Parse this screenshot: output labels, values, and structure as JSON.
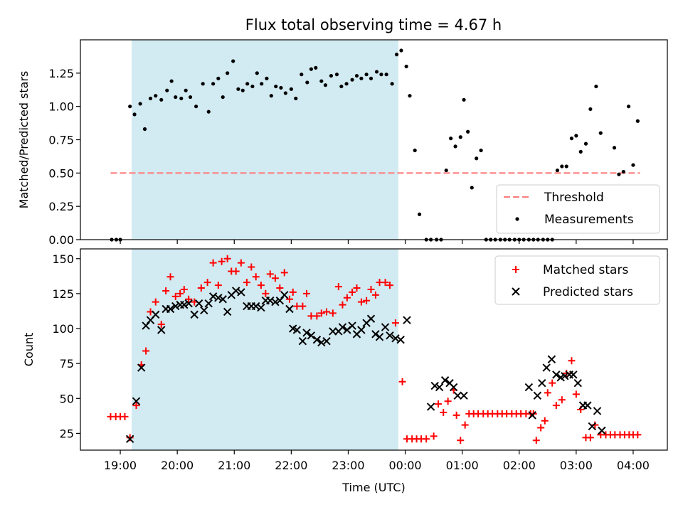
{
  "title": "Flux total observing time = 4.67 h",
  "colors": {
    "shade": "#add8e6",
    "threshold": "#ff8080",
    "measurements": "#000000",
    "matched": "#ff0000",
    "predicted": "#000000"
  },
  "chart_data": [
    {
      "type": "scatter",
      "panel": "top",
      "ylabel": "Matched/Predicted stars",
      "xlabel": "",
      "x_unit": "hours since 00:00 UTC of first night (24 = 00:00 next day)",
      "xlim": [
        18.3,
        28.6
      ],
      "ylim": [
        0,
        1.5
      ],
      "yticks": [
        "0.00",
        "0.25",
        "0.50",
        "0.75",
        "1.00",
        "1.25"
      ],
      "grid": false,
      "legend_position": "bottom-right",
      "shaded_interval": [
        19.2,
        23.88
      ],
      "threshold": {
        "name": "Threshold",
        "value": 0.5,
        "x_range": [
          18.83,
          28.12
        ],
        "style": "dashed"
      },
      "series": [
        {
          "name": "Measurements",
          "marker": "dot",
          "x": [
            18.85,
            18.93,
            19.0,
            19.17,
            19.25,
            19.35,
            19.43,
            19.53,
            19.62,
            19.72,
            19.82,
            19.9,
            19.97,
            20.07,
            20.15,
            20.23,
            20.33,
            20.45,
            20.55,
            20.63,
            20.72,
            20.8,
            20.88,
            20.98,
            21.07,
            21.15,
            21.23,
            21.32,
            21.4,
            21.48,
            21.57,
            21.65,
            21.73,
            21.82,
            21.9,
            22.0,
            22.08,
            22.18,
            22.28,
            22.35,
            22.43,
            22.53,
            22.6,
            22.7,
            22.8,
            22.88,
            22.97,
            23.07,
            23.15,
            23.23,
            23.32,
            23.4,
            23.5,
            23.58,
            23.67,
            23.77,
            23.85,
            23.93,
            24.02,
            24.08,
            24.17,
            24.25,
            24.37,
            24.45,
            24.55,
            24.63,
            24.72,
            24.8,
            24.88,
            24.97,
            25.03,
            25.1,
            25.17,
            25.25,
            25.33,
            25.42,
            25.5,
            25.58,
            25.67,
            25.75,
            25.83,
            25.92,
            26.0,
            26.08,
            26.17,
            26.25,
            26.33,
            26.42,
            26.5,
            26.58,
            26.67,
            26.75,
            26.83,
            26.92,
            27.0,
            27.08,
            27.17,
            27.25,
            27.35,
            27.43,
            27.67,
            27.75,
            27.83,
            27.92,
            28.0,
            28.08
          ],
          "y": [
            0,
            0,
            0,
            1.0,
            0.94,
            1.02,
            0.83,
            1.06,
            1.08,
            1.05,
            1.12,
            1.19,
            1.07,
            1.06,
            1.12,
            1.07,
            1.0,
            1.17,
            0.96,
            1.17,
            1.21,
            1.07,
            1.25,
            1.34,
            1.13,
            1.12,
            1.17,
            1.15,
            1.25,
            1.17,
            1.21,
            1.08,
            1.15,
            1.14,
            1.1,
            1.13,
            1.06,
            1.24,
            1.18,
            1.28,
            1.29,
            1.19,
            1.16,
            1.23,
            1.24,
            1.15,
            1.17,
            1.2,
            1.23,
            1.21,
            1.24,
            1.21,
            1.26,
            1.24,
            1.24,
            1.17,
            1.39,
            1.42,
            1.3,
            1.08,
            0.67,
            0.19,
            0,
            0,
            0,
            0,
            0.52,
            0.76,
            0.7,
            0.77,
            1.05,
            0.81,
            0.39,
            0.61,
            0.67,
            0,
            0,
            0,
            0,
            0,
            0,
            0,
            0,
            0,
            0,
            0,
            0,
            0,
            0,
            0,
            0.52,
            0.55,
            0.55,
            0.76,
            0.78,
            0.66,
            0.72,
            0.98,
            1.15,
            0.8,
            0.69,
            0.49,
            0.51,
            1.0,
            0.56,
            0.89
          ]
        }
      ]
    },
    {
      "type": "scatter",
      "panel": "bottom",
      "ylabel": "Count",
      "xlabel": "Time (UTC)",
      "x_unit": "hours since 00:00 UTC of first night (24 = 00:00 next day)",
      "xlim": [
        18.3,
        28.6
      ],
      "ylim": [
        13,
        157
      ],
      "yticks": [
        "25",
        "50",
        "75",
        "100",
        "125",
        "150"
      ],
      "xticks": [
        {
          "x": 19,
          "label": "19:00"
        },
        {
          "x": 20,
          "label": "20:00"
        },
        {
          "x": 21,
          "label": "21:00"
        },
        {
          "x": 22,
          "label": "22:00"
        },
        {
          "x": 23,
          "label": "23:00"
        },
        {
          "x": 24,
          "label": "00:00"
        },
        {
          "x": 25,
          "label": "01:00"
        },
        {
          "x": 26,
          "label": "02:00"
        },
        {
          "x": 27,
          "label": "03:00"
        },
        {
          "x": 28,
          "label": "04:00"
        }
      ],
      "grid": false,
      "legend_position": "top-right",
      "shaded_interval": [
        19.2,
        23.88
      ],
      "series": [
        {
          "name": "Matched stars",
          "marker": "plus",
          "x": [
            18.83,
            18.92,
            19.0,
            19.08,
            19.17,
            19.28,
            19.37,
            19.45,
            19.53,
            19.62,
            19.72,
            19.8,
            19.88,
            19.97,
            20.05,
            20.12,
            20.2,
            20.3,
            20.42,
            20.53,
            20.63,
            20.72,
            20.78,
            20.88,
            20.95,
            21.03,
            21.12,
            21.22,
            21.3,
            21.38,
            21.47,
            21.55,
            21.63,
            21.72,
            21.8,
            21.88,
            21.97,
            22.03,
            22.1,
            22.2,
            22.27,
            22.35,
            22.45,
            22.53,
            22.62,
            22.73,
            22.83,
            22.9,
            22.98,
            23.07,
            23.15,
            23.23,
            23.32,
            23.4,
            23.48,
            23.55,
            23.65,
            23.73,
            23.83,
            23.95,
            24.03,
            24.12,
            24.2,
            24.28,
            24.37,
            24.5,
            24.58,
            24.67,
            24.75,
            24.85,
            24.9,
            24.97,
            25.05,
            25.12,
            25.2,
            25.28,
            25.37,
            25.45,
            25.53,
            25.62,
            25.7,
            25.78,
            25.87,
            25.95,
            26.03,
            26.12,
            26.2,
            26.25,
            26.3,
            26.38,
            26.45,
            26.5,
            26.58,
            26.65,
            26.75,
            26.83,
            26.92,
            27.0,
            27.08,
            27.17,
            27.25,
            27.33,
            27.43,
            27.52,
            27.6,
            27.68,
            27.77,
            27.85,
            27.93,
            28.0,
            28.08
          ],
          "y": [
            37,
            37,
            37,
            37,
            22,
            45,
            74,
            84,
            112,
            119,
            103,
            127,
            137,
            123,
            125,
            128,
            121,
            119,
            129,
            133,
            147,
            131,
            148,
            150,
            141,
            141,
            147,
            133,
            144,
            137,
            131,
            125,
            139,
            136,
            129,
            140,
            121,
            126,
            116,
            116,
            125,
            109,
            109,
            111,
            112,
            111,
            130,
            117,
            122,
            126,
            129,
            119,
            120,
            128,
            124,
            133,
            133,
            131,
            104,
            62,
            21,
            21,
            21,
            21,
            21,
            23,
            46,
            40,
            48,
            56,
            38,
            20,
            31,
            39,
            39,
            39,
            39,
            39,
            39,
            39,
            39,
            39,
            39,
            39,
            39,
            39,
            39,
            39,
            20,
            29,
            34,
            54,
            61,
            45,
            49,
            68,
            77,
            53,
            42,
            22,
            22,
            31,
            24,
            24,
            24,
            24,
            24,
            24,
            24,
            24,
            24
          ]
        },
        {
          "name": "Predicted stars",
          "marker": "x",
          "x": [
            19.17,
            19.28,
            19.37,
            19.45,
            19.53,
            19.62,
            19.72,
            19.8,
            19.88,
            19.97,
            20.05,
            20.12,
            20.2,
            20.3,
            20.38,
            20.47,
            20.55,
            20.63,
            20.72,
            20.8,
            20.88,
            20.95,
            21.03,
            21.12,
            21.22,
            21.3,
            21.38,
            21.47,
            21.55,
            21.63,
            21.72,
            21.8,
            21.88,
            21.97,
            22.03,
            22.1,
            22.2,
            22.27,
            22.35,
            22.45,
            22.53,
            22.62,
            22.73,
            22.83,
            22.9,
            22.98,
            23.07,
            23.15,
            23.23,
            23.32,
            23.4,
            23.48,
            23.55,
            23.65,
            23.73,
            23.83,
            23.92,
            24.03,
            24.45,
            24.52,
            24.6,
            24.7,
            24.78,
            24.85,
            24.92,
            25.03,
            26.17,
            26.23,
            26.32,
            26.4,
            26.48,
            26.57,
            26.65,
            26.73,
            26.8,
            26.88,
            26.95,
            27.03,
            27.12,
            27.2,
            27.28,
            27.37,
            27.45
          ],
          "y": [
            21,
            48,
            72,
            102,
            106,
            110,
            99,
            114,
            114,
            116,
            117,
            117,
            118,
            110,
            118,
            113,
            118,
            123,
            122,
            121,
            112,
            124,
            127,
            126,
            116,
            116,
            116,
            115,
            120,
            120,
            119,
            120,
            124,
            114,
            100,
            99,
            91,
            97,
            95,
            92,
            90,
            91,
            98,
            98,
            101,
            99,
            102,
            96,
            99,
            104,
            107,
            96,
            94,
            101,
            95,
            93,
            92,
            106,
            44,
            59,
            58,
            63,
            61,
            58,
            52,
            52,
            58,
            38,
            52,
            61,
            72,
            78,
            67,
            65,
            66,
            67,
            67,
            61,
            45,
            45,
            30,
            41,
            27
          ]
        }
      ]
    }
  ]
}
